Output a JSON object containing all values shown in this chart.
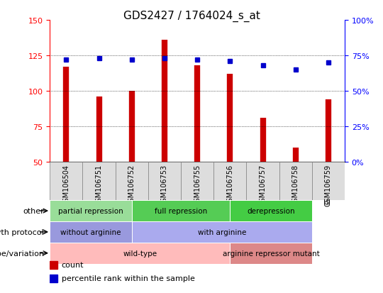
{
  "title": "GDS2427 / 1764024_s_at",
  "samples": [
    "GSM106504",
    "GSM106751",
    "GSM106752",
    "GSM106753",
    "GSM106755",
    "GSM106756",
    "GSM106757",
    "GSM106758",
    "GSM106759"
  ],
  "counts": [
    117,
    96,
    100,
    136,
    118,
    112,
    81,
    60,
    94
  ],
  "percentiles": [
    72,
    73,
    72,
    73,
    72,
    71,
    68,
    65,
    70
  ],
  "count_base": 50,
  "left_ylim": [
    50,
    150
  ],
  "left_yticks": [
    50,
    75,
    100,
    125,
    150
  ],
  "right_ylim": [
    0,
    100
  ],
  "right_yticks": [
    0,
    25,
    50,
    75,
    100
  ],
  "bar_color": "#cc0000",
  "dot_color": "#0000cc",
  "bar_width": 0.4,
  "grid_color": "#000000",
  "annotation_rows": [
    {
      "label": "other",
      "segments": [
        {
          "span": [
            0,
            2.5
          ],
          "text": "partial repression",
          "color": "#99dd99"
        },
        {
          "span": [
            2.5,
            5.5
          ],
          "text": "full repression",
          "color": "#55cc55"
        },
        {
          "span": [
            5.5,
            8
          ],
          "text": "derepression",
          "color": "#44cc44"
        }
      ]
    },
    {
      "label": "growth protocol",
      "segments": [
        {
          "span": [
            0,
            2.5
          ],
          "text": "without arginine",
          "color": "#9999dd"
        },
        {
          "span": [
            2.5,
            8
          ],
          "text": "with arginine",
          "color": "#aaaaee"
        }
      ]
    },
    {
      "label": "genotype/variation",
      "segments": [
        {
          "span": [
            0,
            5.5
          ],
          "text": "wild-type",
          "color": "#ffbbbb"
        },
        {
          "span": [
            5.5,
            8
          ],
          "text": "arginine repressor mutant",
          "color": "#dd8888"
        }
      ]
    }
  ],
  "legend_items": [
    {
      "color": "#cc0000",
      "label": "count"
    },
    {
      "color": "#0000cc",
      "label": "percentile rank within the sample"
    }
  ]
}
